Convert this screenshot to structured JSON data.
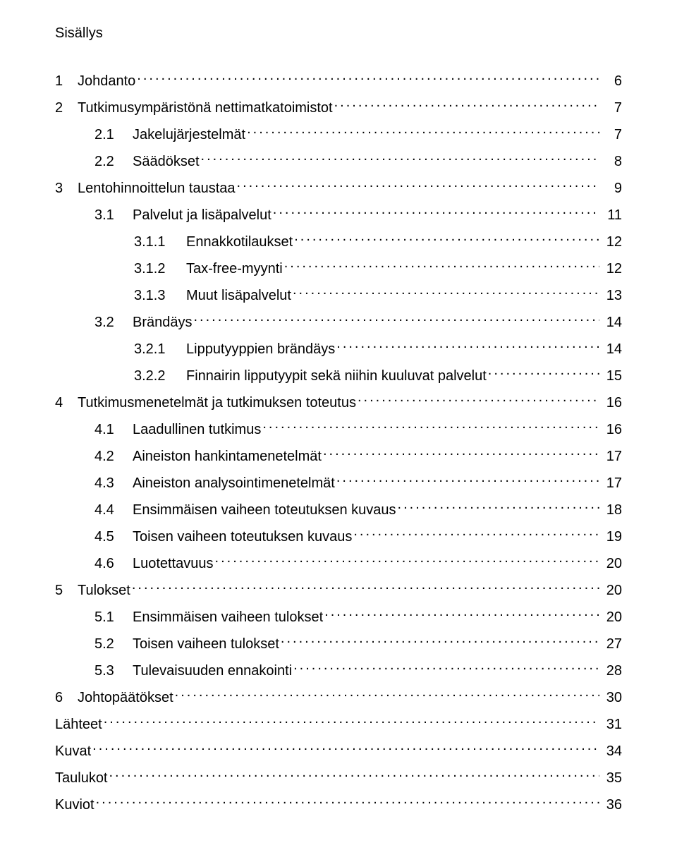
{
  "title": "Sisällys",
  "text_color": "#000000",
  "background_color": "#ffffff",
  "font_family": "Trebuchet MS",
  "base_fontsize_pt": 15,
  "leader_char": ".",
  "toc": [
    {
      "level": 0,
      "num": "1",
      "label": "Johdanto",
      "page": "6"
    },
    {
      "level": 0,
      "num": "2",
      "label": "Tutkimusympäristönä nettimatkatoimistot",
      "page": "7"
    },
    {
      "level": 1,
      "num": "2.1",
      "label": "Jakelujärjestelmät",
      "page": "7"
    },
    {
      "level": 1,
      "num": "2.2",
      "label": "Säädökset",
      "page": "8"
    },
    {
      "level": 0,
      "num": "3",
      "label": "Lentohinnoittelun taustaa",
      "page": "9"
    },
    {
      "level": 1,
      "num": "3.1",
      "label": "Palvelut ja lisäpalvelut",
      "page": "11"
    },
    {
      "level": 2,
      "num": "3.1.1",
      "label": "Ennakkotilaukset",
      "page": "12"
    },
    {
      "level": 2,
      "num": "3.1.2",
      "label": "Tax-free-myynti",
      "page": "12"
    },
    {
      "level": 2,
      "num": "3.1.3",
      "label": "Muut lisäpalvelut",
      "page": "13"
    },
    {
      "level": 1,
      "num": "3.2",
      "label": "Brändäys",
      "page": "14"
    },
    {
      "level": 2,
      "num": "3.2.1",
      "label": "Lipputyyppien brändäys",
      "page": "14"
    },
    {
      "level": 2,
      "num": "3.2.2",
      "label": "Finnairin lipputyypit sekä niihin kuuluvat palvelut",
      "page": "15"
    },
    {
      "level": 0,
      "num": "4",
      "label": "Tutkimusmenetelmät ja tutkimuksen toteutus",
      "page": "16"
    },
    {
      "level": 1,
      "num": "4.1",
      "label": "Laadullinen tutkimus",
      "page": "16"
    },
    {
      "level": 1,
      "num": "4.2",
      "label": "Aineiston hankintamenetelmät",
      "page": "17"
    },
    {
      "level": 1,
      "num": "4.3",
      "label": "Aineiston analysointimenetelmät",
      "page": "17"
    },
    {
      "level": 1,
      "num": "4.4",
      "label": "Ensimmäisen vaiheen toteutuksen kuvaus",
      "page": "18"
    },
    {
      "level": 1,
      "num": "4.5",
      "label": "Toisen vaiheen toteutuksen kuvaus",
      "page": "19"
    },
    {
      "level": 1,
      "num": "4.6",
      "label": "Luotettavuus",
      "page": "20"
    },
    {
      "level": 0,
      "num": "5",
      "label": "Tulokset",
      "page": "20"
    },
    {
      "level": 1,
      "num": "5.1",
      "label": "Ensimmäisen vaiheen tulokset",
      "page": "20"
    },
    {
      "level": 1,
      "num": "5.2",
      "label": "Toisen vaiheen tulokset",
      "page": "27"
    },
    {
      "level": 1,
      "num": "5.3",
      "label": "Tulevaisuuden ennakointi",
      "page": "28"
    },
    {
      "level": 0,
      "num": "6",
      "label": "Johtopäätökset",
      "page": "30"
    },
    {
      "level": -1,
      "num": "",
      "label": "Lähteet",
      "page": "31"
    },
    {
      "level": -1,
      "num": "",
      "label": "Kuvat",
      "page": "34"
    },
    {
      "level": -1,
      "num": "",
      "label": "Taulukot",
      "page": "35"
    },
    {
      "level": -1,
      "num": "",
      "label": "Kuviot",
      "page": "36"
    }
  ]
}
